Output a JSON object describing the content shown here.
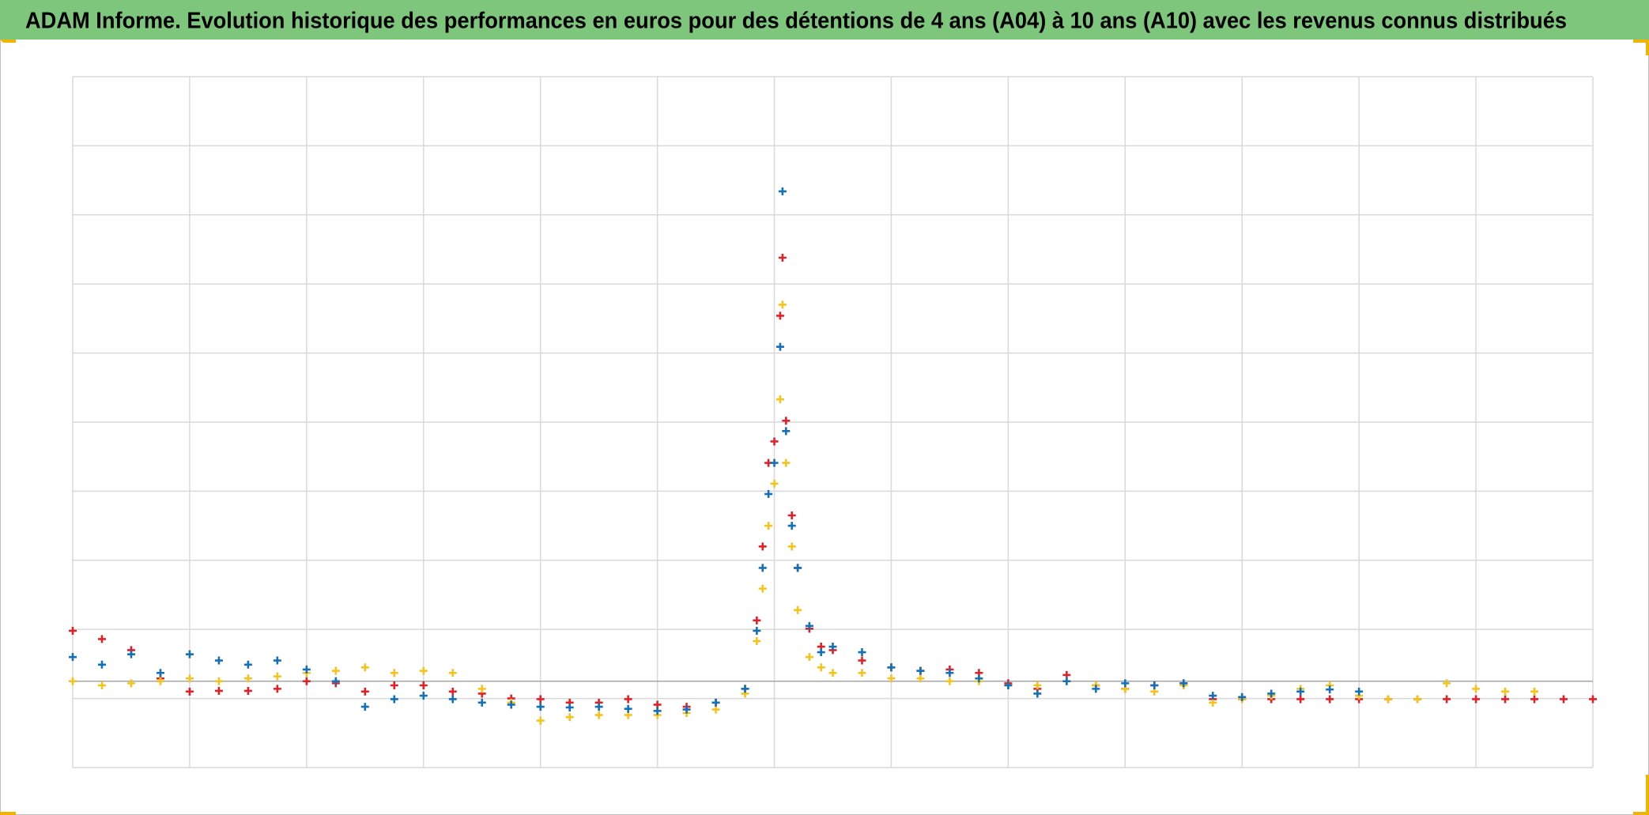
{
  "chart_data": {
    "type": "scatter",
    "title": "ADAM Informe. Evolution historique des performances en euros pour des détentions de 4 ans (A04) à 10 ans (A10) avec les revenus connus distribués",
    "x": [
      0,
      0.25,
      0.5,
      0.75,
      1,
      1.25,
      1.5,
      1.75,
      2,
      2.25,
      2.5,
      2.75,
      3,
      3.25,
      3.5,
      3.75,
      4,
      4.25,
      4.5,
      4.75,
      5,
      5.25,
      5.5,
      5.75,
      5.85,
      5.9,
      5.95,
      6.0,
      6.05,
      6.07,
      6.1,
      6.15,
      6.2,
      6.3,
      6.4,
      6.5,
      6.75,
      7,
      7.25,
      7.5,
      7.75,
      8,
      8.25,
      8.5,
      8.75,
      9,
      9.25,
      9.5,
      9.75,
      10,
      10.25,
      10.5,
      10.75,
      11,
      11.25,
      11.5,
      11.75,
      12,
      12.25,
      12.5,
      12.75,
      13
    ],
    "series": [
      {
        "color": "#e32028",
        "values": [
          1.98,
          1.86,
          1.7,
          1.29,
          1.1,
          1.11,
          1.11,
          1.14,
          1.25,
          1.22,
          1.1,
          1.19,
          1.19,
          1.1,
          1.07,
          1.0,
          0.99,
          0.94,
          0.94,
          0.99,
          0.91,
          0.88,
          0.94,
          1.14,
          2.13,
          3.2,
          4.41,
          4.72,
          6.54,
          7.38,
          5.02,
          3.65,
          2.89,
          2.01,
          1.75,
          1.7,
          1.55,
          1.45,
          1.4,
          1.42,
          1.37,
          1.22,
          1.14,
          1.34,
          1.19,
          1.14,
          1.19,
          1.22,
          0.99,
          0.99,
          0.99,
          0.99,
          0.99,
          0.99,
          0.99,
          0.99,
          0.99,
          0.99,
          0.99,
          0.99,
          0.99,
          0.99
        ]
      },
      {
        "color": "#f6c21c",
        "values": [
          1.25,
          1.19,
          1.22,
          1.25,
          1.29,
          1.25,
          1.29,
          1.32,
          1.37,
          1.4,
          1.45,
          1.37,
          1.4,
          1.37,
          1.14,
          0.94,
          0.68,
          0.73,
          0.76,
          0.76,
          0.76,
          0.79,
          0.84,
          1.07,
          1.83,
          2.59,
          3.5,
          4.11,
          5.33,
          6.7,
          4.41,
          3.2,
          2.28,
          1.6,
          1.45,
          1.37,
          1.37,
          1.29,
          1.29,
          1.25,
          1.25,
          1.19,
          1.19,
          1.25,
          1.19,
          1.14,
          1.1,
          1.19,
          0.94,
          0.99,
          1.04,
          1.14,
          1.19,
          1.04,
          0.99,
          0.99,
          1.22,
          1.14,
          1.1,
          1.1,
          null,
          null
        ]
      },
      {
        "color": "#1470b8",
        "values": [
          1.6,
          1.49,
          1.64,
          1.37,
          1.64,
          1.55,
          1.49,
          1.55,
          1.42,
          1.25,
          0.88,
          0.99,
          1.04,
          0.99,
          0.94,
          0.91,
          0.88,
          0.87,
          0.88,
          0.85,
          0.82,
          0.84,
          0.94,
          1.14,
          1.98,
          2.89,
          3.96,
          4.41,
          6.09,
          8.34,
          4.87,
          3.5,
          2.89,
          2.05,
          1.67,
          1.75,
          1.67,
          1.45,
          1.4,
          1.37,
          1.29,
          1.19,
          1.07,
          1.25,
          1.14,
          1.22,
          1.19,
          1.22,
          1.04,
          1.02,
          1.07,
          1.1,
          1.13,
          1.1,
          null,
          null,
          null,
          null,
          null,
          null,
          null,
          null
        ]
      }
    ],
    "xlim": [
      0,
      13
    ],
    "xticks": [
      0,
      1,
      2,
      3,
      4,
      5,
      6,
      7,
      8,
      9,
      10,
      11,
      12,
      13
    ],
    "ylim": [
      0,
      10
    ],
    "yticks": [
      0,
      1,
      2,
      3,
      4,
      5,
      6,
      7,
      8,
      9,
      10
    ],
    "baseline": 1.25,
    "grid": true
  }
}
